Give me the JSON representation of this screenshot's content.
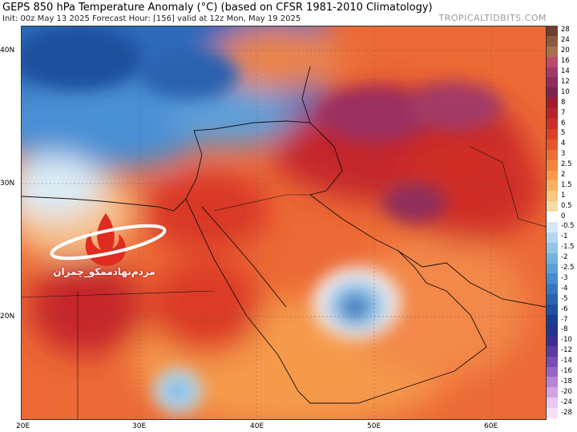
{
  "header": {
    "title": "GEPS 850 hPa Temperature Anomaly (°C) (based on CFSR 1981-2010 Climatology)",
    "subtitle": "Init: 00z May 13 2025   Forecast Hour: [156]   valid at 12z Mon, May 19 2025",
    "brand": "TROPICALTIDBITS.COM"
  },
  "map": {
    "latitudes": [
      "40N",
      "30N",
      "20N"
    ],
    "longitudes": [
      "20E",
      "30E",
      "40E",
      "50E",
      "60E"
    ]
  },
  "colorbar": {
    "labels": [
      "28",
      "24",
      "20",
      "16",
      "14",
      "12",
      "10",
      "8",
      "7",
      "6",
      "5",
      "4",
      "3",
      "2.5",
      "2",
      "1.5",
      "1",
      "0.5",
      "0",
      "-0.5",
      "-1",
      "-1.5",
      "-2",
      "-2.5",
      "-3",
      "-4",
      "-5",
      "-6",
      "-7",
      "-8",
      "-10",
      "-12",
      "-14",
      "-16",
      "-18",
      "-20",
      "-24",
      "-28"
    ],
    "colors": [
      "#6b3f2f",
      "#8a5a3c",
      "#a8704c",
      "#b94a6c",
      "#a33a66",
      "#8f2e5c",
      "#7d2450",
      "#a01c2e",
      "#b8232a",
      "#cc2e27",
      "#dd3e25",
      "#e8542a",
      "#ef6d32",
      "#f3843b",
      "#f69a4a",
      "#f8b160",
      "#f9c77e",
      "#f7dca5",
      "#ffffff",
      "#d6e8f3",
      "#b4d7ed",
      "#93c5e6",
      "#74b2df",
      "#5a9fd6",
      "#478bcc",
      "#3676bf",
      "#2a62b0",
      "#1f4f9e",
      "#183f8c",
      "#25348a",
      "#3a2f8f",
      "#5a3a9e",
      "#7a4db2",
      "#9a66c4",
      "#b884d4",
      "#d2a5e2",
      "#e8c8ee",
      "#f4e1f5"
    ]
  },
  "logo": {
    "icon": "red-flame-logo-icon",
    "text": "مردم‌نهادممکو_چمران"
  }
}
